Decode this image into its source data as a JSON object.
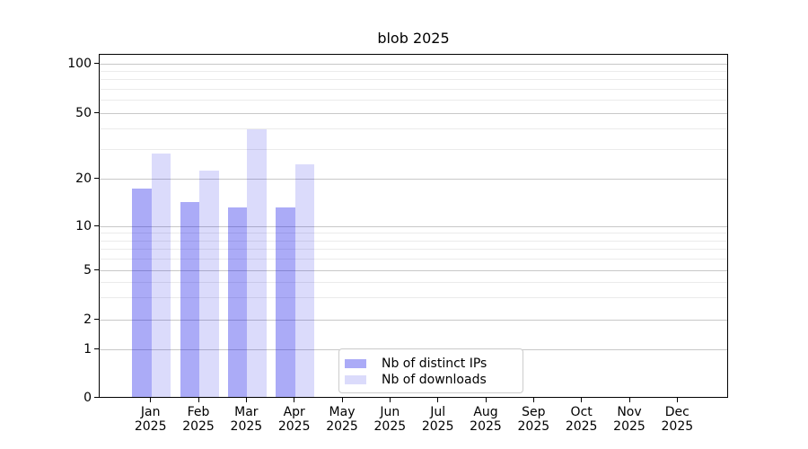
{
  "title": "blob 2025",
  "colors": {
    "bar_ips": "rgba(0,0,230,0.33)",
    "bar_downloads": "rgba(0,0,230,0.14)",
    "grid_major": "#c8c8c8",
    "grid_minor": "#ebebeb",
    "axis": "#000000",
    "legend_border": "#cccccc",
    "text": "#000000"
  },
  "legend": {
    "items": [
      {
        "label": "Nb of distinct IPs",
        "series": "ips"
      },
      {
        "label": "Nb of downloads",
        "series": "downloads"
      }
    ]
  },
  "chart_data": {
    "type": "bar",
    "title": "blob 2025",
    "categories": [
      "Jan",
      "Feb",
      "Mar",
      "Apr",
      "May",
      "Jun",
      "Jul",
      "Aug",
      "Sep",
      "Oct",
      "Nov",
      "Dec"
    ],
    "year_label": "2025",
    "series": [
      {
        "name": "Nb of distinct IPs",
        "values": [
          17,
          14,
          13,
          13,
          0,
          0,
          0,
          0,
          0,
          0,
          0,
          0
        ]
      },
      {
        "name": "Nb of downloads",
        "values": [
          28,
          22,
          39,
          24,
          0,
          0,
          0,
          0,
          0,
          0,
          0,
          0
        ]
      }
    ],
    "xlabel": "",
    "ylabel": "",
    "ylim": [
      0,
      100
    ],
    "y_axis": {
      "scale": "log-like with 0 baseline",
      "major_ticks": [
        0,
        1,
        2,
        5,
        10,
        20,
        50,
        100
      ],
      "minor_ticks": [
        3,
        4,
        6,
        7,
        8,
        9,
        30,
        40,
        60,
        70,
        80,
        90
      ]
    },
    "grid": "horizontal major + minor",
    "legend_position": "lower center"
  }
}
